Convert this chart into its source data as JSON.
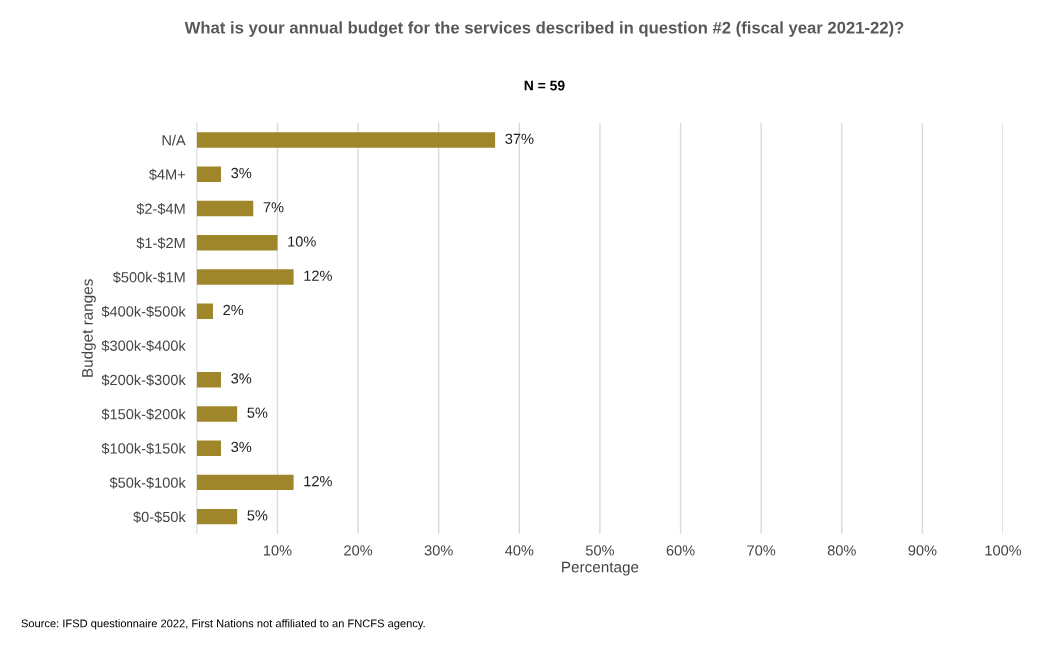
{
  "chart_data": {
    "type": "bar",
    "orientation": "horizontal",
    "title": "What is your annual budget for the services described in question #2 (fiscal year 2021-22)?",
    "subtitle": "N = 59",
    "xlabel": "Percentage",
    "ylabel": "Budget ranges",
    "categories": [
      "N/A",
      "$4M+",
      "$2-$4M",
      "$1-$2M",
      "$500k-$1M",
      "$400k-$500k",
      "$300k-$400k",
      "$200k-$300k",
      "$150k-$200k",
      "$100k-$150k",
      "$50k-$100k",
      "$0-$50k"
    ],
    "values": [
      37,
      3,
      7,
      10,
      12,
      2,
      null,
      3,
      5,
      3,
      12,
      5
    ],
    "value_labels": [
      "37%",
      "3%",
      "7%",
      "10%",
      "12%",
      "2%",
      null,
      "3%",
      "5%",
      "3%",
      "12%",
      "5%"
    ],
    "color": "#a0862a",
    "xlim": [
      0,
      100
    ],
    "xticks": [
      {
        "value": 10,
        "label": "10%"
      },
      {
        "value": 20,
        "label": "20%"
      },
      {
        "value": 30,
        "label": "30%"
      },
      {
        "value": 40,
        "label": "40%"
      },
      {
        "value": 50,
        "label": "50%"
      },
      {
        "value": 60,
        "label": "60%"
      },
      {
        "value": 70,
        "label": "70%"
      },
      {
        "value": 80,
        "label": "80%"
      },
      {
        "value": 90,
        "label": "90%"
      },
      {
        "value": 100,
        "label": "100%"
      }
    ],
    "grid": "x",
    "legend": false,
    "annotations": [
      "Source: IFSD questionnaire 2022, First Nations not affiliated to an FNCFS agency."
    ]
  }
}
